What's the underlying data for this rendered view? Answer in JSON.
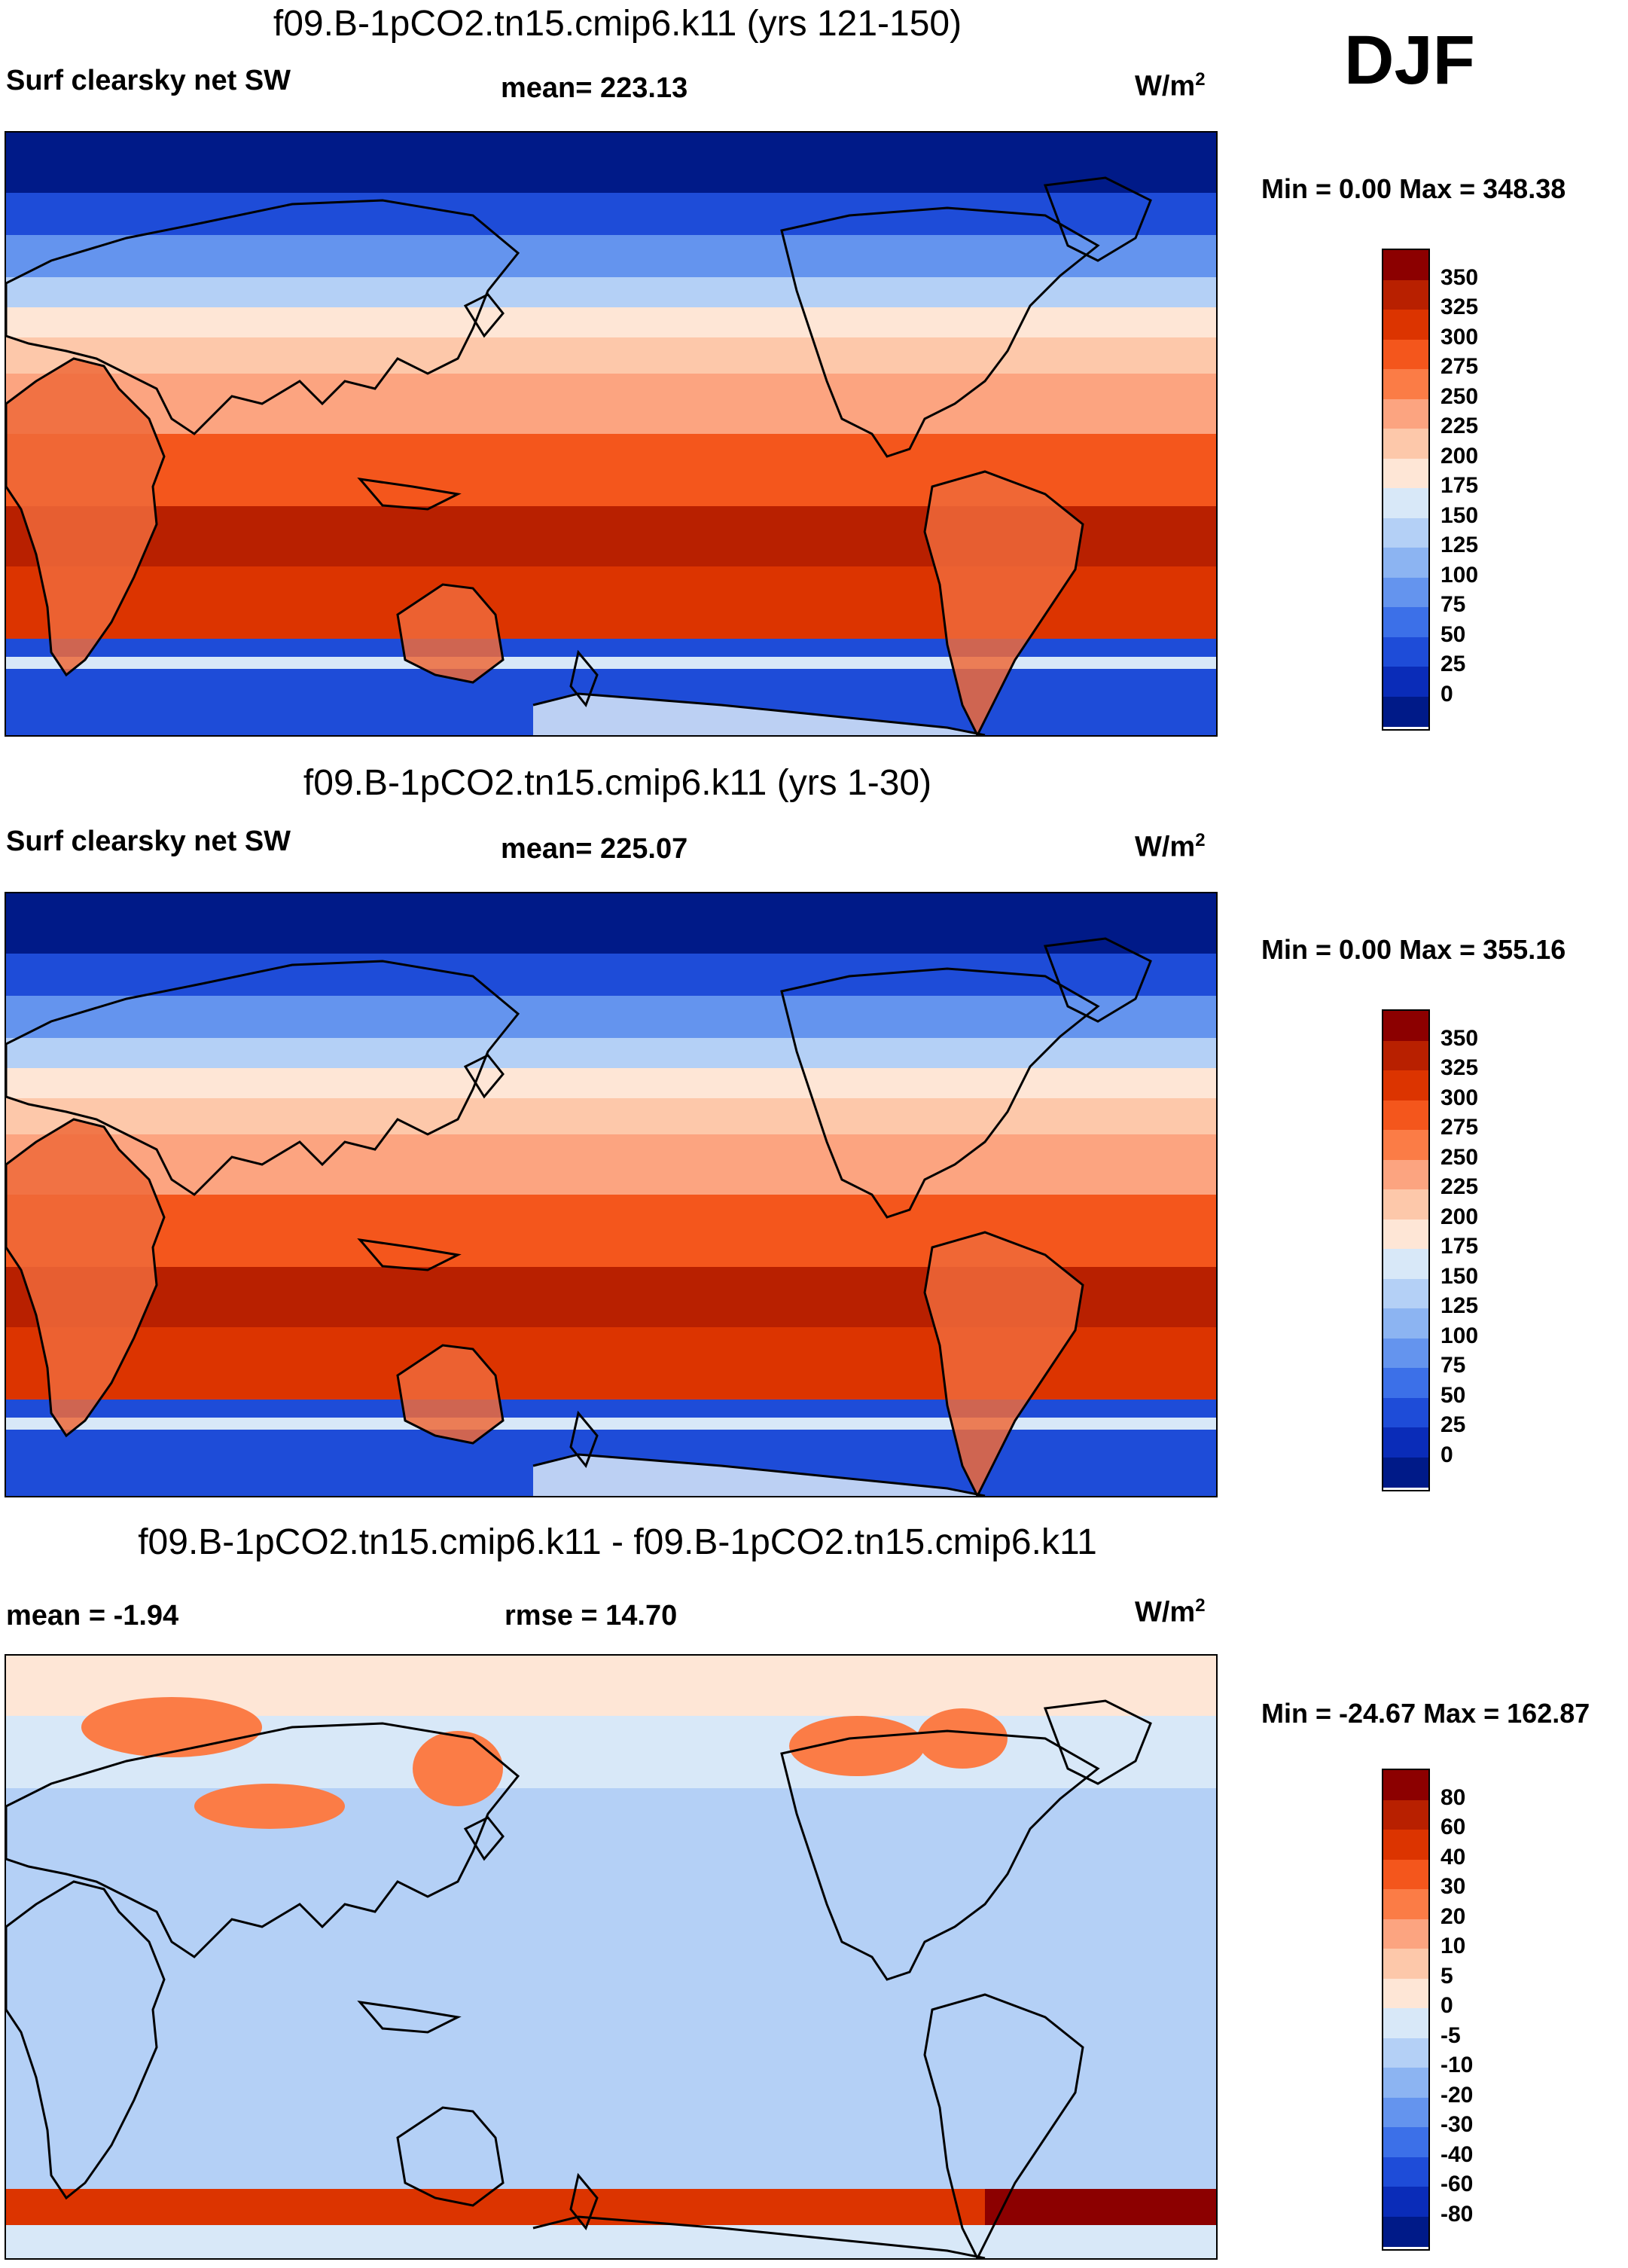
{
  "season": "DJF",
  "units_prefix": "W/m",
  "units_exp": "2",
  "panels": [
    {
      "title": "f09.B-1pCO2.tn15.cmip6.k11 (yrs 121-150)",
      "left_label": "Surf clearsky net SW",
      "center_label": "mean= 223.13",
      "minmax": "Min =   0.00 Max = 348.38",
      "levels": [
        "350",
        "325",
        "300",
        "275",
        "250",
        "225",
        "200",
        "175",
        "150",
        "125",
        "100",
        "75",
        "50",
        "25",
        "0"
      ],
      "colors": [
        "#8c0000",
        "#b82000",
        "#dc3400",
        "#f4561c",
        "#fb7c46",
        "#fca480",
        "#fdc8aa",
        "#fee6d6",
        "#d8e8f8",
        "#b4d0f6",
        "#8cb4f2",
        "#6494ee",
        "#3c70e8",
        "#1e4cd8",
        "#0a2cb8",
        "#001a88"
      ],
      "zone_level_index": [
        0,
        1,
        2,
        4,
        6,
        8,
        11,
        13,
        14,
        14
      ],
      "land_color": "#ee6a3a"
    },
    {
      "title": "f09.B-1pCO2.tn15.cmip6.k11 (yrs 1-30)",
      "left_label": "Surf clearsky net SW",
      "center_label": "mean= 225.07",
      "minmax": "Min =   0.00 Max = 355.16",
      "levels": [
        "350",
        "325",
        "300",
        "275",
        "250",
        "225",
        "200",
        "175",
        "150",
        "125",
        "100",
        "75",
        "50",
        "25",
        "0"
      ],
      "colors": [
        "#8c0000",
        "#b82000",
        "#dc3400",
        "#f4561c",
        "#fb7c46",
        "#fca480",
        "#fdc8aa",
        "#fee6d6",
        "#d8e8f8",
        "#b4d0f6",
        "#8cb4f2",
        "#6494ee",
        "#3c70e8",
        "#1e4cd8",
        "#0a2cb8",
        "#001a88"
      ],
      "zone_level_index": [
        0,
        1,
        2,
        4,
        6,
        8,
        11,
        13,
        14,
        14
      ],
      "land_color": "#ee6a3a"
    },
    {
      "title": "f09.B-1pCO2.tn15.cmip6.k11 - f09.B-1pCO2.tn15.cmip6.k11",
      "left_label": "mean =  -1.94",
      "center_label": "rmse =  14.70",
      "minmax": "Min = -24.67 Max = 162.87",
      "levels": [
        "80",
        "60",
        "40",
        "30",
        "20",
        "10",
        "5",
        "0",
        "-5",
        "-10",
        "-20",
        "-30",
        "-40",
        "-60",
        "-80"
      ],
      "colors": [
        "#8c0000",
        "#b82000",
        "#dc3400",
        "#f4561c",
        "#fb7c46",
        "#fca480",
        "#fdc8aa",
        "#fee6d6",
        "#d8e8f8",
        "#b4d0f6",
        "#8cb4f2",
        "#6494ee",
        "#3c70e8",
        "#1e4cd8",
        "#0a2cb8",
        "#001a88"
      ],
      "land_color": "#fca480"
    }
  ]
}
